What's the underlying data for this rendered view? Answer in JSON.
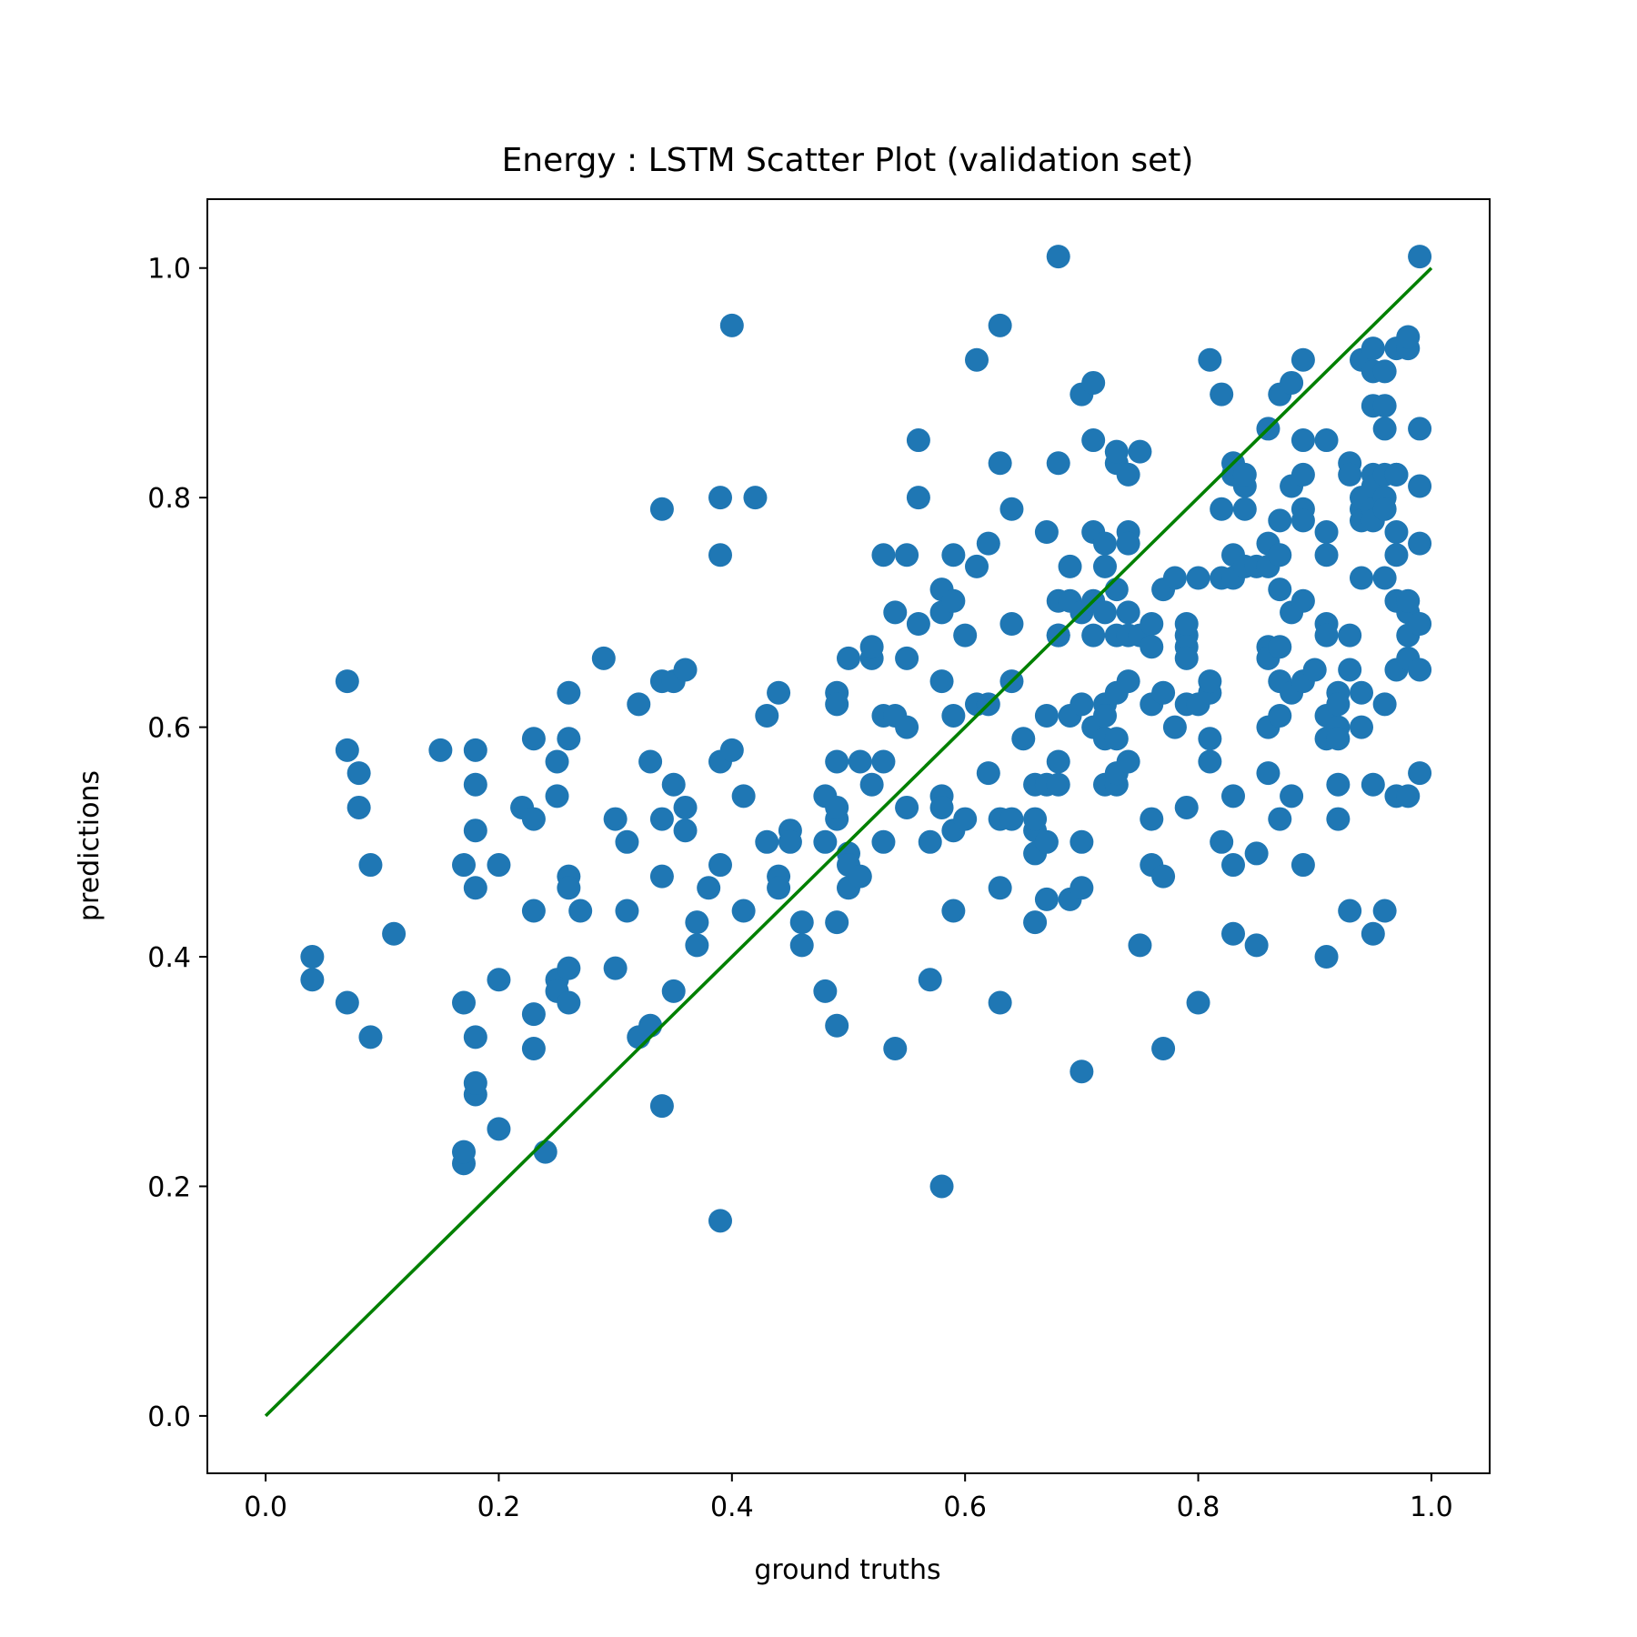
{
  "chart_data": {
    "type": "scatter",
    "title": "Energy : LSTM Scatter Plot (validation set)",
    "xlabel": "ground truths",
    "ylabel": "predictions",
    "xlim": [
      -0.05,
      1.05
    ],
    "ylim": [
      -0.05,
      1.06
    ],
    "x_ticks": [
      0.0,
      0.2,
      0.4,
      0.6,
      0.8,
      1.0
    ],
    "x_tick_labels": [
      "0.0",
      "0.2",
      "0.4",
      "0.6",
      "0.8",
      "1.0"
    ],
    "y_ticks": [
      0.0,
      0.2,
      0.4,
      0.6,
      0.8,
      1.0
    ],
    "y_tick_labels": [
      "0.0",
      "0.2",
      "0.4",
      "0.6",
      "0.8",
      "1.0"
    ],
    "grid": false,
    "colors": {
      "points": "#1f77b4",
      "line": "#008000"
    },
    "reference_line": {
      "x": [
        0.0,
        1.0
      ],
      "y": [
        0.0,
        1.0
      ]
    },
    "points": [
      [
        0.04,
        0.38
      ],
      [
        0.04,
        0.4
      ],
      [
        0.07,
        0.36
      ],
      [
        0.07,
        0.64
      ],
      [
        0.07,
        0.58
      ],
      [
        0.08,
        0.56
      ],
      [
        0.08,
        0.53
      ],
      [
        0.09,
        0.48
      ],
      [
        0.09,
        0.33
      ],
      [
        0.11,
        0.42
      ],
      [
        0.15,
        0.58
      ],
      [
        0.17,
        0.22
      ],
      [
        0.17,
        0.23
      ],
      [
        0.17,
        0.48
      ],
      [
        0.17,
        0.36
      ],
      [
        0.18,
        0.28
      ],
      [
        0.18,
        0.29
      ],
      [
        0.18,
        0.33
      ],
      [
        0.18,
        0.46
      ],
      [
        0.18,
        0.51
      ],
      [
        0.18,
        0.55
      ],
      [
        0.18,
        0.58
      ],
      [
        0.2,
        0.48
      ],
      [
        0.2,
        0.38
      ],
      [
        0.2,
        0.25
      ],
      [
        0.22,
        0.53
      ],
      [
        0.23,
        0.35
      ],
      [
        0.23,
        0.32
      ],
      [
        0.23,
        0.59
      ],
      [
        0.23,
        0.52
      ],
      [
        0.23,
        0.44
      ],
      [
        0.24,
        0.23
      ],
      [
        0.25,
        0.57
      ],
      [
        0.25,
        0.38
      ],
      [
        0.25,
        0.37
      ],
      [
        0.25,
        0.54
      ],
      [
        0.26,
        0.47
      ],
      [
        0.26,
        0.39
      ],
      [
        0.26,
        0.46
      ],
      [
        0.26,
        0.59
      ],
      [
        0.26,
        0.36
      ],
      [
        0.26,
        0.63
      ],
      [
        0.27,
        0.44
      ],
      [
        0.29,
        0.66
      ],
      [
        0.3,
        0.52
      ],
      [
        0.3,
        0.39
      ],
      [
        0.31,
        0.5
      ],
      [
        0.31,
        0.44
      ],
      [
        0.32,
        0.62
      ],
      [
        0.32,
        0.33
      ],
      [
        0.33,
        0.57
      ],
      [
        0.33,
        0.34
      ],
      [
        0.34,
        0.79
      ],
      [
        0.34,
        0.64
      ],
      [
        0.34,
        0.52
      ],
      [
        0.34,
        0.47
      ],
      [
        0.34,
        0.27
      ],
      [
        0.35,
        0.64
      ],
      [
        0.35,
        0.55
      ],
      [
        0.35,
        0.37
      ],
      [
        0.36,
        0.53
      ],
      [
        0.36,
        0.51
      ],
      [
        0.36,
        0.65
      ],
      [
        0.37,
        0.43
      ],
      [
        0.37,
        0.41
      ],
      [
        0.38,
        0.46
      ],
      [
        0.39,
        0.8
      ],
      [
        0.39,
        0.75
      ],
      [
        0.39,
        0.57
      ],
      [
        0.39,
        0.48
      ],
      [
        0.39,
        0.17
      ],
      [
        0.4,
        0.95
      ],
      [
        0.4,
        0.58
      ],
      [
        0.41,
        0.54
      ],
      [
        0.41,
        0.44
      ],
      [
        0.42,
        0.8
      ],
      [
        0.43,
        0.5
      ],
      [
        0.43,
        0.61
      ],
      [
        0.44,
        0.63
      ],
      [
        0.44,
        0.47
      ],
      [
        0.44,
        0.46
      ],
      [
        0.45,
        0.51
      ],
      [
        0.45,
        0.5
      ],
      [
        0.46,
        0.43
      ],
      [
        0.46,
        0.41
      ],
      [
        0.48,
        0.37
      ],
      [
        0.48,
        0.5
      ],
      [
        0.48,
        0.54
      ],
      [
        0.49,
        0.52
      ],
      [
        0.49,
        0.57
      ],
      [
        0.49,
        0.63
      ],
      [
        0.49,
        0.62
      ],
      [
        0.49,
        0.53
      ],
      [
        0.49,
        0.34
      ],
      [
        0.49,
        0.43
      ],
      [
        0.5,
        0.66
      ],
      [
        0.5,
        0.49
      ],
      [
        0.5,
        0.48
      ],
      [
        0.5,
        0.46
      ],
      [
        0.51,
        0.57
      ],
      [
        0.51,
        0.47
      ],
      [
        0.52,
        0.55
      ],
      [
        0.52,
        0.66
      ],
      [
        0.52,
        0.67
      ],
      [
        0.53,
        0.57
      ],
      [
        0.53,
        0.5
      ],
      [
        0.53,
        0.75
      ],
      [
        0.53,
        0.61
      ],
      [
        0.54,
        0.7
      ],
      [
        0.54,
        0.61
      ],
      [
        0.54,
        0.32
      ],
      [
        0.55,
        0.6
      ],
      [
        0.55,
        0.75
      ],
      [
        0.55,
        0.66
      ],
      [
        0.55,
        0.53
      ],
      [
        0.56,
        0.69
      ],
      [
        0.56,
        0.85
      ],
      [
        0.56,
        0.8
      ],
      [
        0.57,
        0.5
      ],
      [
        0.57,
        0.38
      ],
      [
        0.58,
        0.54
      ],
      [
        0.58,
        0.7
      ],
      [
        0.58,
        0.72
      ],
      [
        0.58,
        0.64
      ],
      [
        0.58,
        0.53
      ],
      [
        0.58,
        0.2
      ],
      [
        0.59,
        0.75
      ],
      [
        0.59,
        0.71
      ],
      [
        0.59,
        0.61
      ],
      [
        0.59,
        0.51
      ],
      [
        0.59,
        0.44
      ],
      [
        0.6,
        0.68
      ],
      [
        0.6,
        0.52
      ],
      [
        0.61,
        0.62
      ],
      [
        0.61,
        0.74
      ],
      [
        0.61,
        0.92
      ],
      [
        0.62,
        0.62
      ],
      [
        0.62,
        0.76
      ],
      [
        0.62,
        0.56
      ],
      [
        0.63,
        0.36
      ],
      [
        0.63,
        0.83
      ],
      [
        0.63,
        0.52
      ],
      [
        0.63,
        0.46
      ],
      [
        0.63,
        0.95
      ],
      [
        0.64,
        0.79
      ],
      [
        0.64,
        0.52
      ],
      [
        0.64,
        0.69
      ],
      [
        0.64,
        0.64
      ],
      [
        0.65,
        0.59
      ],
      [
        0.66,
        0.55
      ],
      [
        0.66,
        0.51
      ],
      [
        0.66,
        0.49
      ],
      [
        0.66,
        0.52
      ],
      [
        0.66,
        0.43
      ],
      [
        0.67,
        0.77
      ],
      [
        0.67,
        0.61
      ],
      [
        0.67,
        0.45
      ],
      [
        0.67,
        0.5
      ],
      [
        0.67,
        0.55
      ],
      [
        0.68,
        0.83
      ],
      [
        0.68,
        0.68
      ],
      [
        0.68,
        0.71
      ],
      [
        0.68,
        0.68
      ],
      [
        0.68,
        0.55
      ],
      [
        0.68,
        0.57
      ],
      [
        0.68,
        1.01
      ],
      [
        0.69,
        0.61
      ],
      [
        0.69,
        0.74
      ],
      [
        0.69,
        0.71
      ],
      [
        0.69,
        0.45
      ],
      [
        0.7,
        0.62
      ],
      [
        0.7,
        0.5
      ],
      [
        0.7,
        0.46
      ],
      [
        0.7,
        0.7
      ],
      [
        0.7,
        0.89
      ],
      [
        0.7,
        0.3
      ],
      [
        0.71,
        0.9
      ],
      [
        0.71,
        0.85
      ],
      [
        0.71,
        0.77
      ],
      [
        0.71,
        0.71
      ],
      [
        0.71,
        0.68
      ],
      [
        0.71,
        0.6
      ],
      [
        0.72,
        0.74
      ],
      [
        0.72,
        0.7
      ],
      [
        0.72,
        0.62
      ],
      [
        0.72,
        0.55
      ],
      [
        0.72,
        0.59
      ],
      [
        0.72,
        0.61
      ],
      [
        0.72,
        0.76
      ],
      [
        0.73,
        0.83
      ],
      [
        0.73,
        0.84
      ],
      [
        0.73,
        0.68
      ],
      [
        0.73,
        0.72
      ],
      [
        0.73,
        0.63
      ],
      [
        0.73,
        0.59
      ],
      [
        0.73,
        0.55
      ],
      [
        0.73,
        0.56
      ],
      [
        0.74,
        0.77
      ],
      [
        0.74,
        0.76
      ],
      [
        0.74,
        0.82
      ],
      [
        0.74,
        0.7
      ],
      [
        0.74,
        0.68
      ],
      [
        0.74,
        0.57
      ],
      [
        0.74,
        0.64
      ],
      [
        0.75,
        0.84
      ],
      [
        0.75,
        0.68
      ],
      [
        0.75,
        0.41
      ],
      [
        0.76,
        0.69
      ],
      [
        0.76,
        0.67
      ],
      [
        0.76,
        0.62
      ],
      [
        0.76,
        0.52
      ],
      [
        0.76,
        0.48
      ],
      [
        0.77,
        0.47
      ],
      [
        0.77,
        0.72
      ],
      [
        0.77,
        0.63
      ],
      [
        0.77,
        0.32
      ],
      [
        0.78,
        0.6
      ],
      [
        0.78,
        0.73
      ],
      [
        0.79,
        0.53
      ],
      [
        0.79,
        0.62
      ],
      [
        0.79,
        0.68
      ],
      [
        0.79,
        0.67
      ],
      [
        0.79,
        0.66
      ],
      [
        0.79,
        0.69
      ],
      [
        0.8,
        0.73
      ],
      [
        0.8,
        0.62
      ],
      [
        0.8,
        0.36
      ],
      [
        0.81,
        0.92
      ],
      [
        0.81,
        0.63
      ],
      [
        0.81,
        0.64
      ],
      [
        0.81,
        0.59
      ],
      [
        0.81,
        0.57
      ],
      [
        0.82,
        0.79
      ],
      [
        0.82,
        0.73
      ],
      [
        0.82,
        0.5
      ],
      [
        0.82,
        0.89
      ],
      [
        0.83,
        0.83
      ],
      [
        0.83,
        0.75
      ],
      [
        0.83,
        0.73
      ],
      [
        0.83,
        0.82
      ],
      [
        0.83,
        0.54
      ],
      [
        0.83,
        0.42
      ],
      [
        0.83,
        0.48
      ],
      [
        0.84,
        0.81
      ],
      [
        0.84,
        0.79
      ],
      [
        0.84,
        0.74
      ],
      [
        0.84,
        0.82
      ],
      [
        0.85,
        0.49
      ],
      [
        0.85,
        0.41
      ],
      [
        0.85,
        0.74
      ],
      [
        0.86,
        0.67
      ],
      [
        0.86,
        0.76
      ],
      [
        0.86,
        0.74
      ],
      [
        0.86,
        0.66
      ],
      [
        0.86,
        0.6
      ],
      [
        0.86,
        0.86
      ],
      [
        0.86,
        0.56
      ],
      [
        0.87,
        0.78
      ],
      [
        0.87,
        0.75
      ],
      [
        0.87,
        0.72
      ],
      [
        0.87,
        0.67
      ],
      [
        0.87,
        0.64
      ],
      [
        0.87,
        0.61
      ],
      [
        0.87,
        0.52
      ],
      [
        0.87,
        0.89
      ],
      [
        0.88,
        0.9
      ],
      [
        0.88,
        0.81
      ],
      [
        0.88,
        0.7
      ],
      [
        0.88,
        0.63
      ],
      [
        0.88,
        0.54
      ],
      [
        0.89,
        0.79
      ],
      [
        0.89,
        0.78
      ],
      [
        0.89,
        0.71
      ],
      [
        0.89,
        0.64
      ],
      [
        0.89,
        0.82
      ],
      [
        0.89,
        0.85
      ],
      [
        0.89,
        0.48
      ],
      [
        0.89,
        0.92
      ],
      [
        0.9,
        0.65
      ],
      [
        0.91,
        0.85
      ],
      [
        0.91,
        0.77
      ],
      [
        0.91,
        0.69
      ],
      [
        0.91,
        0.68
      ],
      [
        0.91,
        0.59
      ],
      [
        0.91,
        0.61
      ],
      [
        0.91,
        0.4
      ],
      [
        0.91,
        0.75
      ],
      [
        0.92,
        0.63
      ],
      [
        0.92,
        0.6
      ],
      [
        0.92,
        0.55
      ],
      [
        0.92,
        0.52
      ],
      [
        0.92,
        0.62
      ],
      [
        0.92,
        0.59
      ],
      [
        0.93,
        0.83
      ],
      [
        0.93,
        0.82
      ],
      [
        0.93,
        0.68
      ],
      [
        0.93,
        0.65
      ],
      [
        0.93,
        0.44
      ],
      [
        0.94,
        0.73
      ],
      [
        0.94,
        0.79
      ],
      [
        0.94,
        0.8
      ],
      [
        0.94,
        0.78
      ],
      [
        0.94,
        0.6
      ],
      [
        0.94,
        0.92
      ],
      [
        0.94,
        0.63
      ],
      [
        0.95,
        0.93
      ],
      [
        0.95,
        0.91
      ],
      [
        0.95,
        0.88
      ],
      [
        0.95,
        0.82
      ],
      [
        0.95,
        0.79
      ],
      [
        0.95,
        0.81
      ],
      [
        0.95,
        0.78
      ],
      [
        0.95,
        0.55
      ],
      [
        0.95,
        0.42
      ],
      [
        0.96,
        0.86
      ],
      [
        0.96,
        0.88
      ],
      [
        0.96,
        0.91
      ],
      [
        0.96,
        0.8
      ],
      [
        0.96,
        0.82
      ],
      [
        0.96,
        0.79
      ],
      [
        0.96,
        0.73
      ],
      [
        0.96,
        0.62
      ],
      [
        0.96,
        0.44
      ],
      [
        0.97,
        0.93
      ],
      [
        0.97,
        0.82
      ],
      [
        0.97,
        0.77
      ],
      [
        0.97,
        0.71
      ],
      [
        0.97,
        0.65
      ],
      [
        0.97,
        0.82
      ],
      [
        0.97,
        0.75
      ],
      [
        0.97,
        0.54
      ],
      [
        0.98,
        0.7
      ],
      [
        0.98,
        0.68
      ],
      [
        0.98,
        0.66
      ],
      [
        0.98,
        0.54
      ],
      [
        0.98,
        0.93
      ],
      [
        0.98,
        0.94
      ],
      [
        0.98,
        0.71
      ],
      [
        0.99,
        0.86
      ],
      [
        0.99,
        0.56
      ],
      [
        0.99,
        1.01
      ],
      [
        0.99,
        0.76
      ],
      [
        0.99,
        0.69
      ],
      [
        0.99,
        0.81
      ],
      [
        0.99,
        0.65
      ]
    ]
  }
}
